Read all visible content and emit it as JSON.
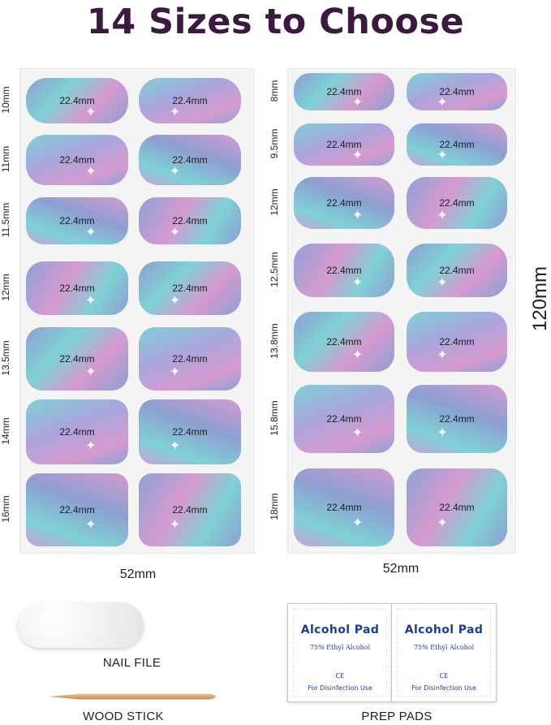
{
  "title": "14 Sizes to Choose",
  "nail_label": "22.4mm",
  "left_sheet": {
    "rows": [
      "10mm",
      "11mm",
      "11.5mm",
      "12mm",
      "13.5mm",
      "14mm",
      "16mm"
    ],
    "width_label": "52mm"
  },
  "right_sheet": {
    "rows": [
      "8mm",
      "9.5mm",
      "12mm",
      "12.5mm",
      "13.8mm",
      "15.8mm",
      "18mm"
    ],
    "width_label": "52mm",
    "height_label": "120mm"
  },
  "accessories": {
    "nail_file": "NAIL FILE",
    "wood_stick": "WOOD STICK",
    "prep_pads": "PREP PADS"
  },
  "alcohol_pad": {
    "title": "Alcohol Pad",
    "subtitle": "75% Ethyl Alcohol",
    "ce_mark": "CE",
    "footer": "For Disinfection Use"
  },
  "colors": {
    "title": "#3a1a3e",
    "nail_blue": "#8d9fd2",
    "nail_teal": "#7fd1d6",
    "nail_pink": "#d59ad0",
    "pad_text": "#1b3f8f"
  },
  "icons": [
    "sparkle-icon"
  ]
}
